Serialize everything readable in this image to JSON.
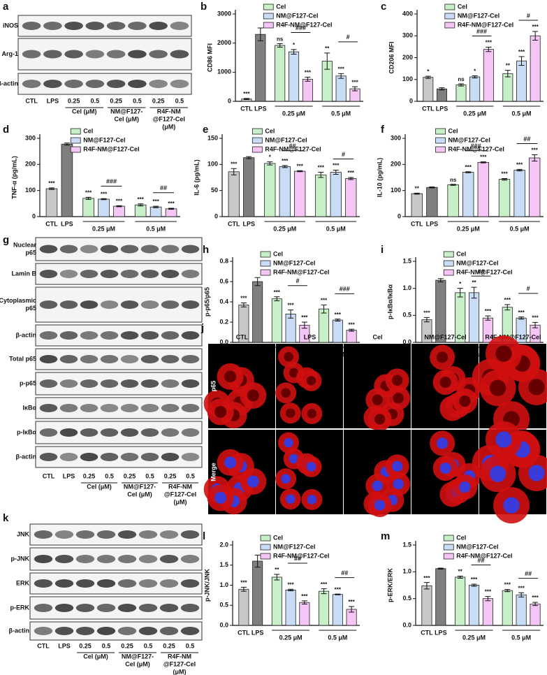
{
  "chart_data": [
    {
      "panel": "b",
      "type": "bar",
      "y_label": "CD86 MFI",
      "categories": [
        "CTL",
        "LPS",
        null,
        null,
        null,
        null,
        null,
        null
      ],
      "values": [
        80,
        2300,
        1920,
        1700,
        760,
        1380,
        870,
        430
      ],
      "errors": [
        20,
        220,
        60,
        80,
        70,
        280,
        80,
        70
      ],
      "annotations": [
        "***",
        null,
        "ns",
        "*",
        "***",
        "**",
        "***",
        "***"
      ],
      "bar_colors": [
        "#c8c8c8",
        "#7f7f7f",
        "#c8f0c8",
        "#c9dcf5",
        "#f5c6f5",
        "#c8f0c8",
        "#c9dcf5",
        "#f5c6f5"
      ],
      "groups": [
        "0.25 μM",
        "0.5 μM"
      ],
      "brackets": [
        "###",
        "#"
      ],
      "legend": [
        {
          "name": "Cel",
          "color": "#c8f0c8"
        },
        {
          "name": "NM@F127-Cel",
          "color": "#c9dcf5"
        },
        {
          "name": "R4F-NM@F127-Cel",
          "color": "#f5c6f5"
        }
      ],
      "ylim": [
        0,
        3000
      ],
      "yticks": [
        0,
        1000,
        2000,
        3000
      ]
    },
    {
      "panel": "c",
      "type": "bar",
      "y_label": "CD206 MFI",
      "categories": [
        "CTL",
        "LPS",
        null,
        null,
        null,
        null,
        null,
        null
      ],
      "values": [
        110,
        57,
        75,
        112,
        238,
        127,
        185,
        300
      ],
      "errors": [
        5,
        5,
        5,
        5,
        10,
        15,
        20,
        20
      ],
      "annotations": [
        "*",
        null,
        "ns",
        "*",
        "***",
        "**",
        "***",
        "***"
      ],
      "bar_colors": [
        "#c8c8c8",
        "#7f7f7f",
        "#c8f0c8",
        "#c9dcf5",
        "#f5c6f5",
        "#c8f0c8",
        "#c9dcf5",
        "#f5c6f5"
      ],
      "groups": [
        "0.25 μM",
        "0.5 μM"
      ],
      "brackets": [
        "###",
        "#"
      ],
      "legend": [
        {
          "name": "Cel",
          "color": "#c8f0c8"
        },
        {
          "name": "NM@F127-Cel",
          "color": "#c9dcf5"
        },
        {
          "name": "R4F-NM@F127-Cel",
          "color": "#f5c6f5"
        }
      ],
      "ylim": [
        0,
        400
      ],
      "yticks": [
        0,
        100,
        200,
        300,
        400
      ]
    },
    {
      "panel": "d",
      "type": "bar",
      "y_label": "TNF-α (pg/mL)",
      "categories": [
        "CTL",
        "LPS",
        null,
        null,
        null,
        null,
        null,
        null
      ],
      "values": [
        107,
        278,
        70,
        67,
        40,
        45,
        37,
        30
      ],
      "errors": [
        3,
        4,
        4,
        2,
        2,
        4,
        3,
        2
      ],
      "annotations": [
        "***",
        null,
        "***",
        "***",
        "***",
        "***",
        "***",
        "***"
      ],
      "bar_colors": [
        "#c8c8c8",
        "#7f7f7f",
        "#c8f0c8",
        "#c9dcf5",
        "#f5c6f5",
        "#c8f0c8",
        "#c9dcf5",
        "#f5c6f5"
      ],
      "groups": [
        "0.25 μM",
        "0.5 μM"
      ],
      "brackets": [
        "###",
        "##"
      ],
      "legend": [
        {
          "name": "Cel",
          "color": "#c8f0c8"
        },
        {
          "name": "NM@F127-Cel",
          "color": "#c9dcf5"
        },
        {
          "name": "R4F-NM@F127-Cel",
          "color": "#f5c6f5"
        }
      ],
      "ylim": [
        0,
        300
      ],
      "yticks": [
        0,
        100,
        200,
        300
      ]
    },
    {
      "panel": "e",
      "type": "bar",
      "y_label": "IL-6 (pg/mL)",
      "categories": [
        "CTL",
        "LPS",
        null,
        null,
        null,
        null,
        null,
        null
      ],
      "values": [
        86,
        113,
        102,
        96,
        87,
        80,
        85,
        73
      ],
      "errors": [
        6,
        2,
        3,
        2,
        1,
        5,
        4,
        2
      ],
      "annotations": [
        "***",
        null,
        "*",
        "***",
        "***",
        "***",
        "***",
        "***"
      ],
      "bar_colors": [
        "#c8c8c8",
        "#7f7f7f",
        "#c8f0c8",
        "#c9dcf5",
        "#f5c6f5",
        "#c8f0c8",
        "#c9dcf5",
        "#f5c6f5"
      ],
      "groups": [
        "0.25 μM",
        "0.5 μM"
      ],
      "brackets": [
        "##",
        "#"
      ],
      "legend": [
        {
          "name": "Cel",
          "color": "#c8f0c8"
        },
        {
          "name": "NM@F127-Cel",
          "color": "#c9dcf5"
        },
        {
          "name": "R4F-NM@F127-Cel",
          "color": "#f5c6f5"
        }
      ],
      "ylim": [
        0,
        150
      ],
      "yticks": [
        0,
        50,
        100,
        150
      ]
    },
    {
      "panel": "f",
      "type": "bar",
      "y_label": "IL-10 (pg/mL)",
      "categories": [
        "CTL",
        "LPS",
        null,
        null,
        null,
        null,
        null,
        null
      ],
      "values": [
        88,
        112,
        122,
        170,
        208,
        143,
        178,
        225
      ],
      "errors": [
        2,
        2,
        2,
        2,
        2,
        3,
        3,
        12
      ],
      "annotations": [
        "**",
        null,
        "ns",
        "***",
        "***",
        "***",
        "***",
        "***"
      ],
      "bar_colors": [
        "#c8c8c8",
        "#7f7f7f",
        "#c8f0c8",
        "#c9dcf5",
        "#f5c6f5",
        "#c8f0c8",
        "#c9dcf5",
        "#f5c6f5"
      ],
      "groups": [
        "0.25 μM",
        "0.5 μM"
      ],
      "brackets": [
        "###",
        "##"
      ],
      "legend": [
        {
          "name": "Cel",
          "color": "#c8f0c8"
        },
        {
          "name": "NM@F127-Cel",
          "color": "#c9dcf5"
        },
        {
          "name": "R4F-NM@F127-Cel",
          "color": "#f5c6f5"
        }
      ],
      "ylim": [
        0,
        300
      ],
      "yticks": [
        0,
        100,
        200,
        300
      ]
    },
    {
      "panel": "h",
      "type": "bar",
      "y_label": "p-p65/p65",
      "categories": [
        "CTL",
        "LPS",
        null,
        null,
        null,
        null,
        null,
        null
      ],
      "values": [
        0.37,
        0.6,
        0.43,
        0.28,
        0.17,
        0.33,
        0.22,
        0.12
      ],
      "errors": [
        0.02,
        0.04,
        0.02,
        0.04,
        0.03,
        0.04,
        0.01,
        0.01
      ],
      "annotations": [
        "***",
        null,
        "***",
        "***",
        "***",
        "***",
        "***",
        "***"
      ],
      "bar_colors": [
        "#c8c8c8",
        "#7f7f7f",
        "#c8f0c8",
        "#c9dcf5",
        "#f5c6f5",
        "#c8f0c8",
        "#c9dcf5",
        "#f5c6f5"
      ],
      "groups": [
        "0.25 μM",
        "0.5 μM"
      ],
      "brackets": [
        "#",
        "###"
      ],
      "legend": [
        {
          "name": "Cel",
          "color": "#c8f0c8"
        },
        {
          "name": "NM@F127-Cel",
          "color": "#c9dcf5"
        },
        {
          "name": "R4F-NM@F127-Cel",
          "color": "#f5c6f5"
        }
      ],
      "ylim": [
        0,
        0.8
      ],
      "yticks": [
        {
          "value": 0,
          "label": "0.0"
        },
        0.2,
        0.4,
        0.6,
        0.8
      ]
    },
    {
      "panel": "i",
      "type": "bar",
      "y_label": "p-IκBα/IκBα",
      "categories": [
        "CTL",
        "LPS",
        null,
        null,
        null,
        null,
        null,
        null
      ],
      "values": [
        0.42,
        1.15,
        0.92,
        0.92,
        0.45,
        0.65,
        0.45,
        0.32
      ],
      "errors": [
        0.04,
        0.03,
        0.08,
        0.1,
        0.04,
        0.05,
        0.02,
        0.05
      ],
      "annotations": [
        "***",
        null,
        "*",
        "**",
        "***",
        "***",
        "***",
        "***"
      ],
      "bar_colors": [
        "#c8c8c8",
        "#7f7f7f",
        "#c8f0c8",
        "#c9dcf5",
        "#f5c6f5",
        "#c8f0c8",
        "#c9dcf5",
        "#f5c6f5"
      ],
      "groups": [
        "0.25 μM",
        "0.5 μM"
      ],
      "brackets": [
        "##",
        "#"
      ],
      "legend": [
        {
          "name": "Cel",
          "color": "#c8f0c8"
        },
        {
          "name": "NM@F127-Cel",
          "color": "#c9dcf5"
        },
        {
          "name": "R4F-NM@F127-Cel",
          "color": "#f5c6f5"
        }
      ],
      "ylim": [
        0,
        1.5
      ],
      "yticks": [
        {
          "value": 0,
          "label": "0.0"
        },
        0.5,
        {
          "value": 1,
          "label": "1.0"
        },
        1.5
      ]
    },
    {
      "panel": "l",
      "type": "bar",
      "y_label": "p-JNK/JNK",
      "categories": [
        "CTL",
        "LPS",
        null,
        null,
        null,
        null,
        null,
        null
      ],
      "values": [
        0.9,
        1.6,
        1.2,
        0.88,
        0.57,
        0.85,
        0.77,
        0.4
      ],
      "errors": [
        0.05,
        0.15,
        0.07,
        0.02,
        0.04,
        0.06,
        0.01,
        0.07
      ],
      "annotations": [
        "***",
        null,
        "**",
        "***",
        "***",
        "***",
        "***",
        "***"
      ],
      "bar_colors": [
        "#c8c8c8",
        "#7f7f7f",
        "#c8f0c8",
        "#c9dcf5",
        "#f5c6f5",
        "#c8f0c8",
        "#c9dcf5",
        "#f5c6f5"
      ],
      "groups": [
        "0.25 μM",
        "0.5 μM"
      ],
      "brackets": [
        "##",
        "##"
      ],
      "legend": [
        {
          "name": "Cel",
          "color": "#c8f0c8"
        },
        {
          "name": "NM@F127-Cel",
          "color": "#c9dcf5"
        },
        {
          "name": "R4F-NM@F127-Cel",
          "color": "#f5c6f5"
        }
      ],
      "ylim": [
        0,
        2
      ],
      "yticks": [
        {
          "value": 0,
          "label": "0.0"
        },
        0.5,
        {
          "value": 1,
          "label": "1.0"
        },
        1.5,
        {
          "value": 2,
          "label": "2.0"
        }
      ]
    },
    {
      "panel": "m",
      "type": "bar",
      "y_label": "p-ERK/ERK",
      "categories": [
        "CTL",
        "LPS",
        null,
        null,
        null,
        null,
        null,
        null
      ],
      "values": [
        0.74,
        1.06,
        0.9,
        0.75,
        0.5,
        0.65,
        0.57,
        0.4
      ],
      "errors": [
        0.06,
        0.01,
        0.02,
        0.02,
        0.04,
        0.02,
        0.04,
        0.03
      ],
      "annotations": [
        "***",
        null,
        "**",
        "***",
        "***",
        "***",
        "***",
        "***"
      ],
      "bar_colors": [
        "#c8c8c8",
        "#7f7f7f",
        "#c8f0c8",
        "#c9dcf5",
        "#f5c6f5",
        "#c8f0c8",
        "#c9dcf5",
        "#f5c6f5"
      ],
      "groups": [
        "0.25 μM",
        "0.5 μM"
      ],
      "brackets": [
        "##",
        "##"
      ],
      "legend": [
        {
          "name": "Cel",
          "color": "#c8f0c8"
        },
        {
          "name": "NM@F127-Cel",
          "color": "#c9dcf5"
        },
        {
          "name": "R4F-NM@F127-Cel",
          "color": "#f5c6f5"
        }
      ],
      "ylim": [
        0,
        1.5
      ],
      "yticks": [
        {
          "value": 0,
          "label": "0.0"
        },
        0.5,
        {
          "value": 1,
          "label": "1.0"
        },
        1.5
      ]
    }
  ],
  "blots": [
    {
      "panel": "a",
      "rows": [
        [
          "iNOS"
        ],
        [
          "Arg-1"
        ],
        [
          "β-actin"
        ]
      ],
      "lanes": [
        "CTL",
        "LPS",
        "0.25",
        "0.5",
        "0.25",
        "0.5",
        "0.25",
        "0.5"
      ],
      "groups": [
        [
          "Cel (μM)"
        ],
        [
          "NM@F127-",
          "Cel (μM)"
        ],
        [
          "R4F-NM",
          "@F127-Cel",
          "(μM)"
        ]
      ]
    },
    {
      "panel": "g",
      "rows": [
        [
          "Nuclear",
          "p65"
        ],
        [
          "Lamin B"
        ],
        [
          "Cytoplasmic",
          "p65"
        ],
        [
          "β-actin"
        ],
        [
          "Total p65"
        ],
        [
          "p-p65"
        ],
        [
          "IκBα"
        ],
        [
          "p-IκBα"
        ],
        [
          "β-actin"
        ]
      ],
      "lanes": [
        "CTL",
        "LPS",
        "0.25",
        "0.5",
        "0.25",
        "0.5",
        "0.25",
        "0.5"
      ],
      "groups": [
        [
          "Cel (μM)"
        ],
        [
          "NM@F127-",
          "Cel (μM)"
        ],
        [
          "R4F-NM",
          "@F127-Cel",
          "(μM)"
        ]
      ]
    },
    {
      "panel": "k",
      "rows": [
        [
          "JNK"
        ],
        [
          "p-JNK"
        ],
        [
          "ERK"
        ],
        [
          "p-ERK"
        ],
        [
          "β-actin"
        ]
      ],
      "lanes": [
        "CTL",
        "LPS",
        "0.25",
        "0.5",
        "0.25",
        "0.5",
        "0.25",
        "0.5"
      ],
      "groups": [
        [
          "Cel (μM)"
        ],
        [
          "NM@F127-",
          "Cel (μM)"
        ],
        [
          "R4F-NM",
          "@F127-Cel",
          "(μM)"
        ]
      ]
    }
  ],
  "micrographs": {
    "panel": "j",
    "columns": [
      "CTL",
      "LPS",
      "Cel",
      "NM@F127-Cel",
      "R4F-NM@F127-Cel"
    ],
    "rows": [
      "p65",
      "Merge"
    ]
  }
}
